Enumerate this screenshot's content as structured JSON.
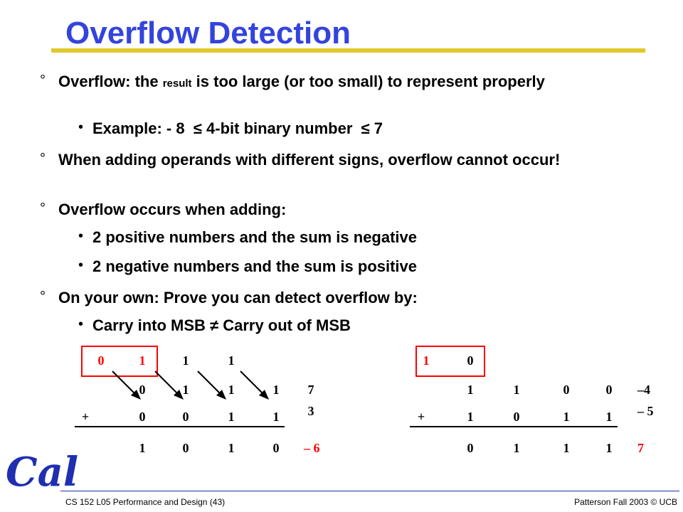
{
  "slide": {
    "title": "Overflow Detection",
    "bullet_mark": "°",
    "sub_mark": "•",
    "b1_pre": "Overflow: the ",
    "b1_small": "result",
    "b1_post": " is too large (or too small) to represent properly",
    "b1a": "Example: - 8  ≤ 4-bit binary number  ≤ 7",
    "b2": "When adding operands with different signs, overflow cannot occur!",
    "b3": "Overflow occurs when adding:",
    "b3a": "2 positive numbers and the sum is negative",
    "b3b": "2 negative numbers and the sum is positive",
    "b4": "On your own: Prove you can detect overflow by:",
    "b4a": "Carry into MSB ≠ Carry out of MSB"
  },
  "example_left": {
    "carries": [
      "0",
      "1",
      "1",
      "1"
    ],
    "row1": [
      "0",
      "1",
      "1",
      "1"
    ],
    "row1_value": "7",
    "plus": "+",
    "row2": [
      "0",
      "0",
      "1",
      "1"
    ],
    "row2_value": "3",
    "sum": [
      "1",
      "0",
      "1",
      "0"
    ],
    "sum_value": "– 6"
  },
  "example_right": {
    "carries": [
      "1",
      "0"
    ],
    "row1": [
      "1",
      "1",
      "0",
      "0"
    ],
    "row1_value": "–4",
    "plus": "+",
    "row2": [
      "1",
      "0",
      "1",
      "1"
    ],
    "row2_value": "– 5",
    "sum": [
      "0",
      "1",
      "1",
      "1"
    ],
    "sum_value": "7"
  },
  "footer": {
    "left": "CS 152 L05 Performance and Design (43)",
    "right": "Patterson Fall 2003 © UCB",
    "logo": "Cal"
  },
  "colors": {
    "title": "#3344dd",
    "rule": "#e0c92b",
    "accent": "#ff0000",
    "logo": "#1f2fb0"
  }
}
